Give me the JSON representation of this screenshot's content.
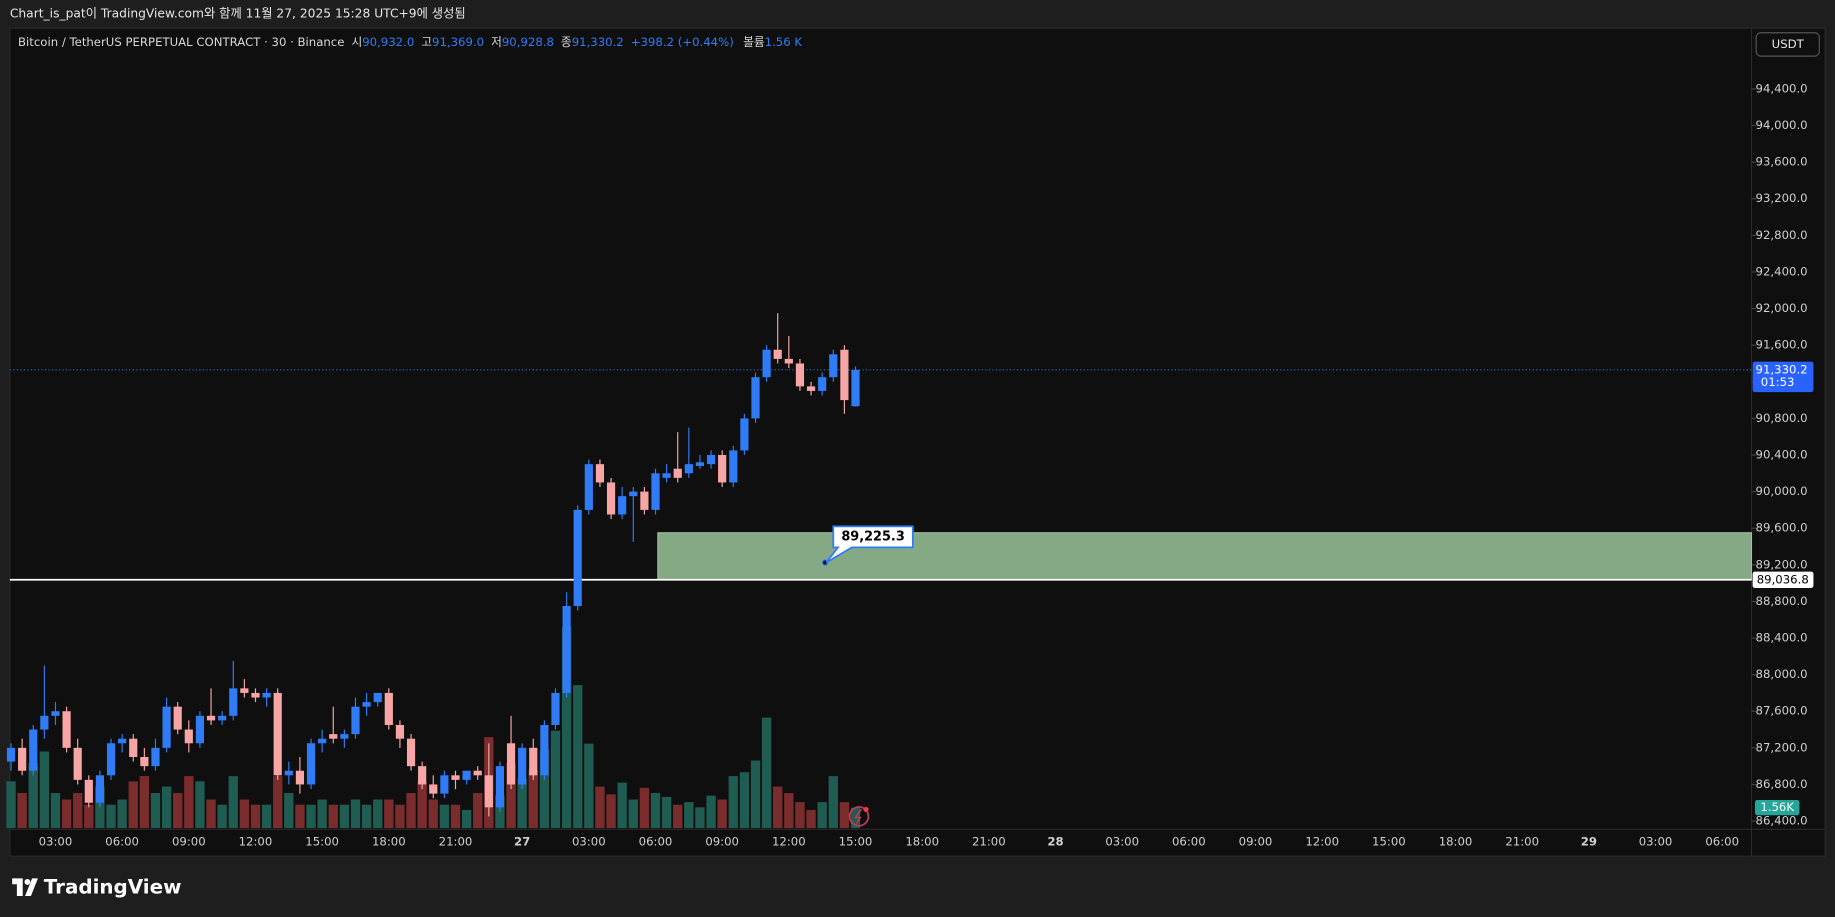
{
  "header": {
    "caption": "Chart_is_pat이 TradingView.com와 함께 11월 27, 2025 15:28 UTC+9에 생성됨"
  },
  "legend": {
    "symbol": "Bitcoin / TetherUS PERPETUAL CONTRACT · 30 · Binance",
    "open_label": "시",
    "open": "90,932.0",
    "high_label": "고",
    "high": "91,369.0",
    "low_label": "저",
    "low": "90,928.8",
    "close_label": "종",
    "close": "91,330.2",
    "change": "+398.2 (+0.44%)",
    "volume_label": "볼륨",
    "volume": "1.56 K"
  },
  "currency_button": "USDT",
  "brand": "TradingView",
  "chart_data": {
    "type": "candlestick",
    "up_color": "#2f7cf6",
    "down_color": "#f7a5a5",
    "volume_up_color": "#1f5c52",
    "volume_down_color": "#7b2c2c",
    "ylim": [
      86323,
      95065
    ],
    "yticks": [
      {
        "value": 86400,
        "label": "86,400.0"
      },
      {
        "value": 86800,
        "label": "86,800.0"
      },
      {
        "value": 87200,
        "label": "87,200.0"
      },
      {
        "value": 87600,
        "label": "87,600.0"
      },
      {
        "value": 88000,
        "label": "88,000.0"
      },
      {
        "value": 88400,
        "label": "88,400.0"
      },
      {
        "value": 88800,
        "label": "88,800.0"
      },
      {
        "value": 89200,
        "label": "89,200.0"
      },
      {
        "value": 89600,
        "label": "89,600.0"
      },
      {
        "value": 90000,
        "label": "90,000.0"
      },
      {
        "value": 90400,
        "label": "90,400.0"
      },
      {
        "value": 90800,
        "label": "90,800.0"
      },
      {
        "value": 91200,
        "label": "91,200.0"
      },
      {
        "value": 91600,
        "label": "91,600.0"
      },
      {
        "value": 92000,
        "label": "92,000.0"
      },
      {
        "value": 92400,
        "label": "92,400.0"
      },
      {
        "value": 92800,
        "label": "92,800.0"
      },
      {
        "value": 93200,
        "label": "93,200.0"
      },
      {
        "value": 93600,
        "label": "93,600.0"
      },
      {
        "value": 94000,
        "label": "94,000.0"
      },
      {
        "value": 94400,
        "label": "94,400.0"
      }
    ],
    "xticks": [
      "03:00",
      "06:00",
      "09:00",
      "12:00",
      "15:00",
      "18:00",
      "21:00",
      "27",
      "03:00",
      "06:00",
      "09:00",
      "12:00",
      "15:00",
      "18:00",
      "21:00",
      "28",
      "03:00",
      "06:00",
      "09:00",
      "12:00",
      "15:00",
      "18:00",
      "21:00",
      "29",
      "03:00",
      "06:00"
    ],
    "open": [
      87050,
      87200,
      86950,
      87400,
      87550,
      87600,
      87200,
      86850,
      86600,
      86900,
      87250,
      87300,
      87100,
      87000,
      87200,
      87650,
      87400,
      87250,
      87550,
      87500,
      87550,
      87850,
      87800,
      87750,
      87800,
      86900,
      86950,
      86800,
      87250,
      87350,
      87300,
      87350,
      87650,
      87700,
      87800,
      87450,
      87300,
      87000,
      86800,
      86700,
      86900,
      86850,
      86950,
      86900,
      86550,
      87250,
      86800,
      87200,
      86900,
      87450,
      87800,
      88750,
      89800,
      90300,
      90100,
      89750,
      89950,
      90000,
      89800,
      90150,
      90250,
      90200,
      90280,
      90300,
      90400,
      90100,
      90450,
      90800,
      91250,
      91550,
      91450,
      91400,
      91150,
      91100,
      91250,
      91550,
      90932
    ],
    "high": [
      87250,
      87300,
      87450,
      88100,
      87700,
      87650,
      87300,
      86900,
      86950,
      87300,
      87350,
      87350,
      87200,
      87300,
      87750,
      87700,
      87500,
      87600,
      87850,
      87600,
      88150,
      87950,
      87850,
      87850,
      87850,
      87050,
      87100,
      87300,
      87400,
      87650,
      87400,
      87750,
      87800,
      87800,
      87850,
      87500,
      87350,
      87050,
      86900,
      86950,
      86950,
      86950,
      87000,
      87250,
      87050,
      87550,
      87250,
      87300,
      87500,
      87850,
      88900,
      89850,
      90350,
      90350,
      90150,
      90050,
      90050,
      90050,
      90250,
      90300,
      90650,
      90700,
      90400,
      90450,
      90450,
      90500,
      90850,
      91300,
      91600,
      91950,
      91700,
      91450,
      91200,
      91300,
      91550,
      91600,
      91369
    ],
    "low": [
      86950,
      86900,
      86900,
      87300,
      87450,
      87150,
      86800,
      86550,
      86550,
      86850,
      87150,
      87050,
      86950,
      86950,
      87150,
      87350,
      87150,
      87200,
      87450,
      87450,
      87500,
      87750,
      87700,
      87650,
      86850,
      86800,
      86700,
      86750,
      87150,
      87250,
      87200,
      87300,
      87550,
      87650,
      87400,
      87200,
      86950,
      86750,
      86650,
      86650,
      86750,
      86800,
      86850,
      86450,
      86500,
      86750,
      86750,
      86850,
      86850,
      87400,
      87750,
      88700,
      89750,
      90050,
      89700,
      89700,
      89450,
      89750,
      89750,
      90100,
      90100,
      90150,
      90250,
      90250,
      90050,
      90050,
      90400,
      90750,
      91200,
      91400,
      91350,
      91100,
      91050,
      91050,
      91200,
      90850,
      90928.8
    ],
    "close": [
      87200,
      86950,
      87400,
      87550,
      87600,
      87200,
      86850,
      86600,
      86900,
      87250,
      87300,
      87100,
      87000,
      87200,
      87650,
      87400,
      87250,
      87550,
      87500,
      87550,
      87850,
      87800,
      87750,
      87800,
      86900,
      86950,
      86800,
      87250,
      87300,
      87300,
      87350,
      87650,
      87700,
      87800,
      87450,
      87300,
      87000,
      86800,
      86700,
      86900,
      86850,
      86950,
      86900,
      86550,
      87000,
      86800,
      87200,
      86900,
      87450,
      87800,
      88750,
      89800,
      90300,
      90100,
      89750,
      89950,
      90000,
      89800,
      90200,
      90200,
      90150,
      90300,
      90320,
      90400,
      90100,
      90450,
      90800,
      91250,
      91550,
      91450,
      91400,
      91150,
      91100,
      91250,
      91500,
      91000,
      91330.2
    ],
    "volume": [
      3600,
      2700,
      5000,
      5900,
      2700,
      2200,
      2700,
      1800,
      3200,
      1800,
      2200,
      3600,
      4000,
      2700,
      3200,
      2700,
      4000,
      3600,
      2200,
      1800,
      4000,
      2200,
      1800,
      1800,
      4000,
      2700,
      1800,
      1800,
      2200,
      1800,
      1800,
      2200,
      1800,
      2200,
      2200,
      1800,
      2700,
      3600,
      2200,
      1800,
      1800,
      1400,
      2700,
      7000,
      2500,
      5000,
      3800,
      4500,
      6000,
      7500,
      15500,
      11000,
      6500,
      3200,
      2600,
      3500,
      2200,
      3100,
      2700,
      2400,
      1800,
      2000,
      1600,
      2500,
      2200,
      4000,
      4300,
      5200,
      8500,
      3200,
      2700,
      2000,
      1400,
      2000,
      4000,
      2000,
      1560
    ],
    "vlim": [
      0,
      18000
    ],
    "volume_tag": "1.56K",
    "price_tag": {
      "value": 91330.2,
      "label": "91,330.2",
      "countdown": "01:53"
    },
    "hline": {
      "value": 89036.8,
      "label": "89,036.8"
    },
    "zone": {
      "top": 89550,
      "bottom": 89036.8,
      "color": "#86a985"
    },
    "annotation": {
      "value": 89225.3,
      "label": "89,225.3"
    }
  }
}
